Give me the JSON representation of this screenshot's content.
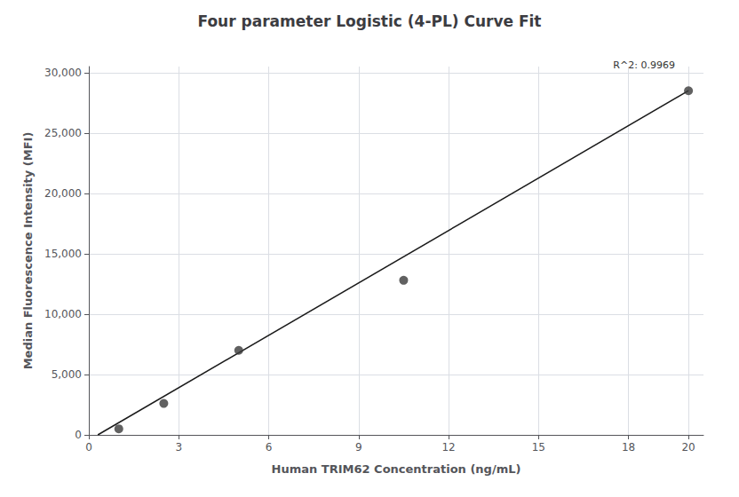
{
  "chart_data": {
    "type": "scatter",
    "title": "Four parameter Logistic (4-PL) Curve Fit",
    "xlabel": "Human TRIM62 Concentration (ng/mL)",
    "ylabel": "Median Fluorescence Intensity (MFI)",
    "series": [
      {
        "type": "line",
        "color": "#1a1a1a",
        "x": [
          0.3,
          20.0
        ],
        "values": [
          0,
          28500
        ]
      },
      {
        "type": "scatter",
        "color": "#3a3a3a",
        "x": [
          1.0,
          2.5,
          5.0,
          10.5,
          20.0
        ],
        "values": [
          500,
          2600,
          7000,
          12800,
          28500
        ]
      }
    ],
    "xlim": [
      0,
      20.5
    ],
    "ylim": [
      0,
      30500
    ],
    "xticks": [
      0,
      3,
      6,
      9,
      12,
      15,
      18,
      20
    ],
    "yticks": [
      0,
      {
        "value": 5000,
        "label": "5,000"
      },
      {
        "value": 10000,
        "label": "10,000"
      },
      {
        "value": 15000,
        "label": "15,000"
      },
      {
        "value": 20000,
        "label": "20,000"
      },
      {
        "value": 25000,
        "label": "25,000"
      },
      {
        "value": 30000,
        "label": "30,000"
      }
    ],
    "annotations": [
      {
        "text": "R^2: 0.9969",
        "x": 19.55,
        "y": 30200
      }
    ],
    "grid": true
  }
}
